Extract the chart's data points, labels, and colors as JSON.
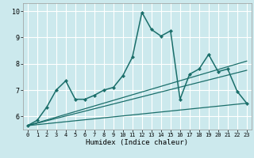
{
  "xlabel": "Humidex (Indice chaleur)",
  "bg_color": "#cce9ed",
  "grid_color": "#ffffff",
  "line_color": "#1a6e6a",
  "xlim": [
    -0.5,
    23.5
  ],
  "ylim": [
    5.5,
    10.3
  ],
  "yticks": [
    6,
    7,
    8,
    9,
    10
  ],
  "xticks": [
    0,
    1,
    2,
    3,
    4,
    5,
    6,
    7,
    8,
    9,
    10,
    11,
    12,
    13,
    14,
    15,
    16,
    17,
    18,
    19,
    20,
    21,
    22,
    23
  ],
  "series_main": {
    "x": [
      0,
      1,
      2,
      3,
      4,
      5,
      6,
      7,
      8,
      9,
      10,
      11,
      12,
      13,
      14,
      15,
      16,
      17,
      18,
      19,
      20,
      21,
      22,
      23
    ],
    "y": [
      5.65,
      5.85,
      6.35,
      7.0,
      7.35,
      6.65,
      6.65,
      6.8,
      7.0,
      7.1,
      7.55,
      8.25,
      9.95,
      9.3,
      9.05,
      9.25,
      6.65,
      7.6,
      7.8,
      8.35,
      7.7,
      7.8,
      6.95,
      6.5
    ]
  },
  "fan_lines": [
    {
      "x": [
        0,
        23
      ],
      "y": [
        5.65,
        6.5
      ]
    },
    {
      "x": [
        0,
        23
      ],
      "y": [
        5.65,
        7.75
      ]
    },
    {
      "x": [
        0,
        23
      ],
      "y": [
        5.65,
        8.1
      ]
    }
  ]
}
